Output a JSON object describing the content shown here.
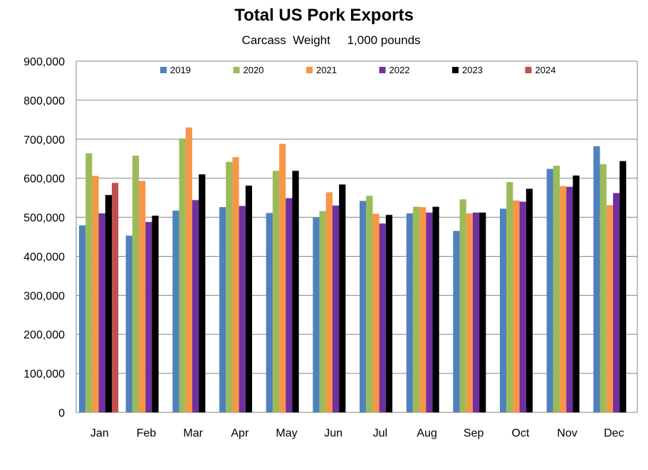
{
  "chart_data": {
    "type": "bar",
    "title": "Total US Pork Exports",
    "subtitle": "Carcass  Weight     1,000 pounds",
    "xlabel": "",
    "ylabel": "",
    "ylim": [
      0,
      900000
    ],
    "yticks": [
      "0",
      "100,000",
      "200,000",
      "300,000",
      "400,000",
      "500,000",
      "600,000",
      "700,000",
      "800,000",
      "900,000"
    ],
    "grid": true,
    "legend_position": "top",
    "categories": [
      "Jan",
      "Feb",
      "Mar",
      "Apr",
      "May",
      "Jun",
      "Jul",
      "Aug",
      "Sep",
      "Oct",
      "Nov",
      "Dec"
    ],
    "series": [
      {
        "name": "2019",
        "color": "#4F81BD",
        "values": [
          479000,
          453000,
          517000,
          526000,
          511000,
          499000,
          542000,
          510000,
          465000,
          522000,
          624000,
          682000
        ]
      },
      {
        "name": "2020",
        "color": "#9BBB59",
        "values": [
          664000,
          658000,
          702000,
          642000,
          619000,
          516000,
          555000,
          527000,
          546000,
          590000,
          632000,
          636000
        ]
      },
      {
        "name": "2021",
        "color": "#F79646",
        "values": [
          606000,
          593000,
          730000,
          654000,
          688000,
          564000,
          509000,
          526000,
          510000,
          543000,
          580000,
          531000
        ]
      },
      {
        "name": "2022",
        "color": "#7030A0",
        "values": [
          510000,
          488000,
          544000,
          529000,
          549000,
          530000,
          484000,
          512000,
          512000,
          540000,
          578000,
          562000
        ]
      },
      {
        "name": "2023",
        "color": "#000000",
        "values": [
          557000,
          504000,
          610000,
          581000,
          619000,
          584000,
          506000,
          527000,
          512000,
          573000,
          607000,
          644000
        ]
      },
      {
        "name": "2024",
        "color": "#C0504D",
        "values": [
          588000,
          null,
          null,
          null,
          null,
          null,
          null,
          null,
          null,
          null,
          null,
          null
        ]
      }
    ]
  }
}
